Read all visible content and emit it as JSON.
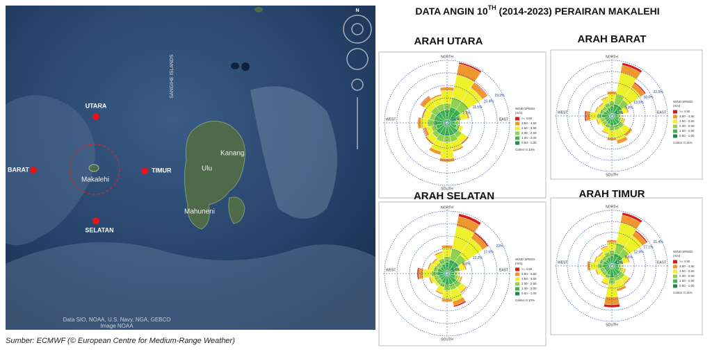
{
  "title_parts": [
    "DATA ANGIN 10",
    "TH",
    " (2014-2023) PERAIRAN MAKALEHI"
  ],
  "caption": "Sumber: ECMWF (© European Centre for Medium-Range Weather)",
  "map": {
    "points": [
      "UTARA",
      "BARAT",
      "TIMUR",
      "SELATAN"
    ],
    "places": [
      "Makalehi",
      "Kanang",
      "Ulu",
      "Mahuneni"
    ],
    "region": "SANGIHE ISLANDS",
    "compass": "N",
    "attribution": [
      "Data SIO, NOAA, U.S. Navy, NGA, GEBCO",
      "Image NOAA"
    ]
  },
  "chart_data": [
    {
      "type": "windrose",
      "title": "ARAH UTARA",
      "directions": [
        "NORTH",
        "EAST",
        "SOUTH",
        "WEST"
      ],
      "legend_title": [
        "WIND SPEED",
        "(m/s)"
      ],
      "calms": "Calms: 0.10%",
      "rlim": [
        0,
        19.2
      ],
      "rticks": [
        {
          "value": 3.8,
          "label": "3.8%"
        },
        {
          "value": 7.7,
          "label": "7.7%"
        },
        {
          "value": 11.5,
          "label": "11.5%"
        },
        {
          "value": 15.4,
          "label": "15.4%"
        },
        {
          "value": 19.2,
          "label": "19.2%"
        }
      ],
      "series": [
        {
          "name": "0.50 - 1.00",
          "color": "#1f8a4c",
          "values": [
            1,
            1,
            1,
            1,
            1,
            1,
            1,
            1,
            1,
            1,
            1,
            1,
            1,
            1,
            1,
            1
          ]
        },
        {
          "name": "1.00 - 2.00",
          "color": "#3fb34f",
          "values": [
            3,
            4,
            4,
            2,
            1.5,
            2,
            3,
            3,
            3,
            3,
            3,
            2.5,
            3,
            3,
            3,
            3
          ]
        },
        {
          "name": "2.00 - 2.50",
          "color": "#8fd14f",
          "values": [
            2,
            3,
            3,
            1.5,
            1,
            1,
            1.5,
            2,
            2,
            2,
            1.5,
            1.5,
            2,
            1.5,
            2,
            2
          ]
        },
        {
          "name": "2.50 - 3.50",
          "color": "#eef02a",
          "values": [
            4,
            7,
            5,
            2,
            0.5,
            1,
            2,
            2.5,
            5,
            3,
            2,
            1.5,
            2,
            2,
            2.5,
            2.5
          ]
        },
        {
          "name": "3.50 - 4.50",
          "color": "#f0962e",
          "values": [
            1,
            3.5,
            1.8,
            0.5,
            0,
            0,
            0.5,
            0.5,
            1,
            1,
            0.5,
            0.8,
            1,
            0.5,
            1.3,
            0.5
          ]
        },
        {
          "name": ">= 4.50",
          "color": "#d7191c",
          "values": [
            0,
            0.5,
            0.2,
            0,
            0,
            0,
            0,
            0,
            0,
            0,
            0,
            0.2,
            0,
            0,
            0.2,
            0
          ]
        }
      ]
    },
    {
      "type": "windrose",
      "title": "ARAH BARAT",
      "directions": [
        "NORTH",
        "EAST",
        "SOUTH",
        "WEST"
      ],
      "legend_title": [
        "WIND SPEED",
        "(m/s)"
      ],
      "calms": "Calms: 0.11%",
      "rlim": [
        0,
        22.5
      ],
      "rticks": [
        {
          "value": 4.5,
          "label": "4.5%"
        },
        {
          "value": 9,
          "label": "9.0%"
        },
        {
          "value": 13.5,
          "label": "13.5%"
        },
        {
          "value": 18,
          "label": "18.0%"
        },
        {
          "value": 22.5,
          "label": "22.5%"
        }
      ],
      "series": [
        {
          "name": "0.50 - 1.00",
          "color": "#1f8a4c",
          "values": [
            1,
            1,
            1,
            1,
            1,
            1,
            1,
            1,
            1,
            1,
            1,
            1,
            1,
            1,
            1,
            1
          ]
        },
        {
          "name": "1.00 - 2.00",
          "color": "#3fb34f",
          "values": [
            3,
            4,
            4,
            2,
            1.5,
            2,
            3,
            3,
            3,
            2.5,
            2,
            2,
            3,
            2.5,
            2,
            2.5
          ]
        },
        {
          "name": "2.00 - 2.50",
          "color": "#8fd14f",
          "values": [
            2,
            4,
            3,
            1.5,
            1,
            1,
            2,
            2,
            2,
            1.5,
            1.5,
            1.5,
            2,
            1.5,
            1.5,
            2
          ]
        },
        {
          "name": "2.50 - 3.50",
          "color": "#eef02a",
          "values": [
            3,
            9,
            6,
            2,
            0.5,
            1,
            3,
            4,
            3,
            2,
            1,
            1.5,
            3,
            1.5,
            1.5,
            2
          ]
        },
        {
          "name": "3.50 - 4.50",
          "color": "#f0962e",
          "values": [
            1,
            3,
            2,
            0.5,
            0,
            0.5,
            1,
            1.5,
            1,
            0.5,
            0,
            0.5,
            1.5,
            0.5,
            0.5,
            0.5
          ]
        },
        {
          "name": ">= 4.50",
          "color": "#d7191c",
          "values": [
            0,
            1,
            0.5,
            0,
            0,
            0,
            0,
            0,
            0,
            0,
            0,
            0,
            0.5,
            0,
            0,
            0
          ]
        }
      ]
    },
    {
      "type": "windrose",
      "title": "ARAH SELATAN",
      "directions": [
        "NORTH",
        "EAST",
        "SOUTH",
        "WEST"
      ],
      "legend_title": [
        "WIND SPEED",
        "(m/s)"
      ],
      "calms": "Calms: 0.10%",
      "rlim": [
        0,
        22
      ],
      "rticks": [
        {
          "value": 4.4,
          "label": "4.4%"
        },
        {
          "value": 8.8,
          "label": "8.8%"
        },
        {
          "value": 13.2,
          "label": "13.2%"
        },
        {
          "value": 17.6,
          "label": "17.6%"
        },
        {
          "value": 22,
          "label": "22%"
        }
      ],
      "series": [
        {
          "name": "0.50 - 1.00",
          "color": "#1f8a4c",
          "values": [
            1,
            1,
            1,
            1,
            1,
            1,
            1,
            1,
            1,
            1,
            1,
            1,
            1,
            1,
            1,
            1
          ]
        },
        {
          "name": "1.00 - 2.00",
          "color": "#3fb34f",
          "values": [
            3,
            4,
            4,
            2,
            1.5,
            2,
            3,
            3,
            3,
            2.5,
            2,
            2,
            2.5,
            2.5,
            2,
            2.5
          ]
        },
        {
          "name": "2.00 - 2.50",
          "color": "#8fd14f",
          "values": [
            2,
            4,
            3,
            1.5,
            1,
            1,
            2,
            2,
            2,
            1.5,
            1.5,
            1.5,
            2,
            1.5,
            1.5,
            2
          ]
        },
        {
          "name": "2.50 - 3.50",
          "color": "#eef02a",
          "values": [
            3,
            8,
            7,
            2,
            0.5,
            1,
            2,
            4,
            3,
            2,
            1,
            1.5,
            3,
            1.5,
            1.5,
            2
          ]
        },
        {
          "name": "3.50 - 4.50",
          "color": "#f0962e",
          "values": [
            1,
            3.5,
            2,
            0.5,
            0,
            0.5,
            0.5,
            1.5,
            1,
            0.5,
            0,
            0.5,
            1.5,
            0.5,
            0.5,
            0.5
          ]
        },
        {
          "name": ">= 4.50",
          "color": "#d7191c",
          "values": [
            0,
            1,
            0.5,
            0,
            0,
            0,
            0,
            0.5,
            0,
            0,
            0,
            0,
            0.5,
            0,
            0,
            0
          ]
        }
      ]
    },
    {
      "type": "windrose",
      "title": "ARAH TIMUR",
      "directions": [
        "NORTH",
        "EAST",
        "SOUTH",
        "WEST"
      ],
      "legend_title": [
        "WIND SPEED",
        "(m/s)"
      ],
      "calms": "Calms: 0.11%",
      "rlim": [
        0,
        21.4
      ],
      "rticks": [
        {
          "value": 4.3,
          "label": "4.3%"
        },
        {
          "value": 8.6,
          "label": "8.6%"
        },
        {
          "value": 12.9,
          "label": "12.9%"
        },
        {
          "value": 17.1,
          "label": "17.1%"
        },
        {
          "value": 21.4,
          "label": "21.4%"
        }
      ],
      "series": [
        {
          "name": "0.50 - 1.00",
          "color": "#1f8a4c",
          "values": [
            1,
            1,
            1,
            1,
            1,
            1,
            1,
            1,
            1,
            1,
            1,
            1,
            1,
            1,
            1,
            1
          ]
        },
        {
          "name": "1.00 - 2.00",
          "color": "#3fb34f",
          "values": [
            3,
            4,
            4,
            2,
            1.5,
            2,
            3,
            3,
            3.5,
            2.5,
            2,
            2,
            2.5,
            2.5,
            2,
            2.5
          ]
        },
        {
          "name": "2.00 - 2.50",
          "color": "#8fd14f",
          "values": [
            2,
            4,
            3,
            1.5,
            1,
            1,
            2,
            2,
            2.5,
            1.5,
            1.5,
            1.5,
            2,
            1.5,
            1.5,
            2
          ]
        },
        {
          "name": "2.50 - 3.50",
          "color": "#eef02a",
          "values": [
            3,
            8,
            6,
            2,
            0.5,
            1,
            2,
            3,
            5,
            2,
            1,
            1.5,
            3,
            1.5,
            1.5,
            2
          ]
        },
        {
          "name": "3.50 - 4.50",
          "color": "#f0962e",
          "values": [
            1,
            3,
            2,
            0.5,
            0,
            0.5,
            0.5,
            1,
            3,
            0.5,
            0,
            0.5,
            1,
            0.5,
            0.5,
            0.5
          ]
        },
        {
          "name": ">= 4.50",
          "color": "#d7191c",
          "values": [
            0,
            1,
            0.5,
            0,
            0,
            0,
            0,
            0,
            1,
            0,
            0,
            0,
            0,
            0,
            0,
            0
          ]
        }
      ]
    }
  ]
}
